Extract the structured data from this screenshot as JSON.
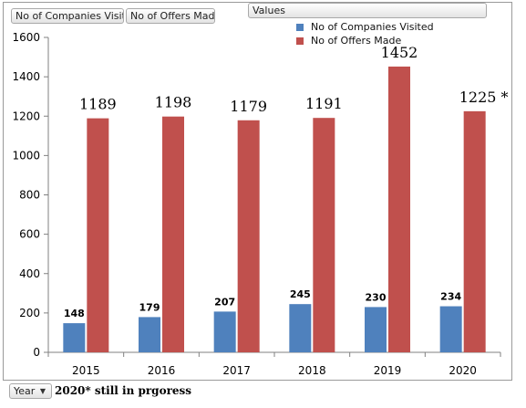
{
  "pivot_buttons": {
    "companies": "No of Companies Visited",
    "offers": "No of Offers Made",
    "values": "Values",
    "year": "Year"
  },
  "footnote": "2020* still in prgoress",
  "colors": {
    "companies": "#4f81bd",
    "offers": "#c0504d"
  },
  "chart_data": {
    "type": "bar",
    "categories": [
      "2015",
      "2016",
      "2017",
      "2018",
      "2019",
      "2020"
    ],
    "series": [
      {
        "name": "No of Companies Visited",
        "values": [
          148,
          179,
          207,
          245,
          230,
          234
        ],
        "labels": [
          "148",
          "179",
          "207",
          "245",
          "230",
          "234"
        ]
      },
      {
        "name": "No of Offers Made",
        "values": [
          1189,
          1198,
          1179,
          1191,
          1452,
          1225
        ],
        "labels": [
          "1189",
          "1198",
          "1179",
          "1191",
          "1452",
          "1225 *"
        ]
      }
    ],
    "ylim": [
      0,
      1600
    ],
    "yticks": [
      0,
      200,
      400,
      600,
      800,
      1000,
      1200,
      1400,
      1600
    ],
    "grid": false,
    "legend": "top-right",
    "title": "",
    "xlabel": "",
    "ylabel": ""
  }
}
